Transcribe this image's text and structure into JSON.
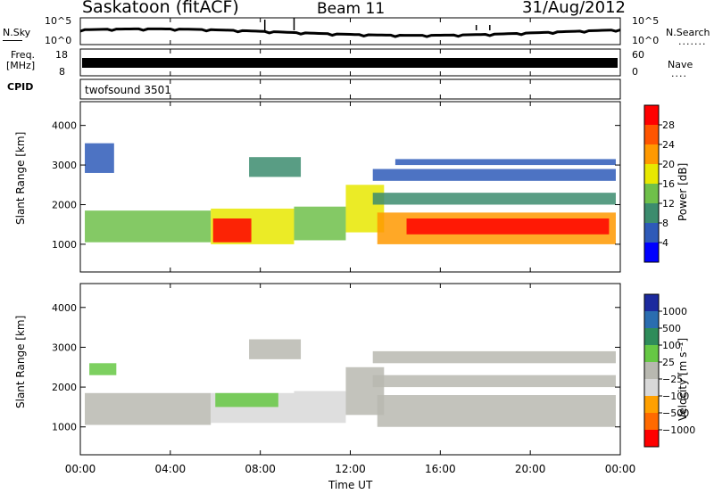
{
  "header": {
    "station": "Saskatoon (fitACF)",
    "beam": "Beam 11",
    "date": "31/Aug/2012"
  },
  "strips": {
    "nsky_label": "N.Sky",
    "nsearch_label": "N.Search",
    "nsky_ticks": [
      "10^5",
      "10^0"
    ],
    "nsearch_ticks": [
      "10^5",
      "10^0"
    ],
    "freq_label_1": "Freq.",
    "freq_label_2": "[MHz]",
    "freq_ticks": [
      "18",
      "8"
    ],
    "nave_label": "Nave",
    "nave_ticks": [
      "60",
      "0"
    ],
    "cpid_label": "CPID",
    "cpid_value": "twofsound 3501"
  },
  "colors": {
    "power_scale": [
      "#0000ff",
      "#2e5ab8",
      "#3c8c6e",
      "#6fc04a",
      "#e8e800",
      "#ff9900",
      "#ff5500",
      "#ff0000"
    ],
    "velocity_scale": [
      "#1c2a9e",
      "#2a6db0",
      "#2e8c5a",
      "#66c844",
      "#b8b8b0",
      "#d8d8d8",
      "#ffa000",
      "#ff6a00",
      "#ff0000"
    ]
  },
  "chart_data": [
    {
      "type": "heatmap",
      "panel": "power",
      "ylabel": "Slant Range [km]",
      "yticks": [
        "1000",
        "2000",
        "3000",
        "4000"
      ],
      "ylim": [
        300,
        4600
      ],
      "xlim": [
        0,
        24
      ],
      "colorbar": {
        "label": "Power [dB]",
        "ticks": [
          "4",
          "8",
          "12",
          "16",
          "20",
          "24",
          "28"
        ],
        "range": [
          0,
          32
        ]
      },
      "bands": [
        {
          "t0": 0.2,
          "t1": 5.8,
          "r0": 1050,
          "r1": 1850,
          "v": 12
        },
        {
          "t0": 5.8,
          "t1": 9.5,
          "r0": 1000,
          "r1": 1900,
          "v": 18
        },
        {
          "t0": 5.9,
          "t1": 7.6,
          "r0": 1050,
          "r1": 1650,
          "v": 28
        },
        {
          "t0": 9.5,
          "t1": 11.8,
          "r0": 1100,
          "r1": 1950,
          "v": 14
        },
        {
          "t0": 7.5,
          "t1": 9.8,
          "r0": 2700,
          "r1": 3200,
          "v": 10
        },
        {
          "t0": 11.8,
          "t1": 13.5,
          "r0": 1300,
          "r1": 2500,
          "v": 16
        },
        {
          "t0": 13.2,
          "t1": 23.8,
          "r0": 1000,
          "r1": 1800,
          "v": 22
        },
        {
          "t0": 14.5,
          "t1": 23.5,
          "r0": 1250,
          "r1": 1650,
          "v": 30
        },
        {
          "t0": 13.0,
          "t1": 23.8,
          "r0": 2000,
          "r1": 2300,
          "v": 8
        },
        {
          "t0": 13.0,
          "t1": 23.8,
          "r0": 2600,
          "r1": 2900,
          "v": 6
        },
        {
          "t0": 14.0,
          "t1": 23.8,
          "r0": 3000,
          "r1": 3150,
          "v": 5
        },
        {
          "t0": 0.2,
          "t1": 1.5,
          "r0": 2800,
          "r1": 3550,
          "v": 5
        }
      ]
    },
    {
      "type": "heatmap",
      "panel": "velocity",
      "ylabel": "Slant Range [km]",
      "yticks": [
        "1000",
        "2000",
        "3000",
        "4000"
      ],
      "ylim": [
        300,
        4600
      ],
      "xlim": [
        0,
        24
      ],
      "colorbar": {
        "label": "Velocity [m s⁻¹]",
        "ticks": [
          "1000",
          "500",
          "100",
          "25",
          "−25",
          "−100",
          "−500",
          "−1000"
        ],
        "range": [
          -1200,
          1200
        ]
      },
      "bands": [
        {
          "t0": 0.2,
          "t1": 5.8,
          "r0": 1050,
          "r1": 1850,
          "v": 0
        },
        {
          "t0": 5.8,
          "t1": 9.5,
          "r0": 1100,
          "r1": 1850,
          "v": -300
        },
        {
          "t0": 6.0,
          "t1": 8.8,
          "r0": 1500,
          "r1": 1850,
          "v": 200
        },
        {
          "t0": 9.5,
          "t1": 11.8,
          "r0": 1100,
          "r1": 1900,
          "v": -150
        },
        {
          "t0": 7.5,
          "t1": 9.8,
          "r0": 2700,
          "r1": 3200,
          "v": 0
        },
        {
          "t0": 11.8,
          "t1": 13.5,
          "r0": 1300,
          "r1": 2500,
          "v": 0
        },
        {
          "t0": 13.2,
          "t1": 23.8,
          "r0": 1000,
          "r1": 1800,
          "v": 0
        },
        {
          "t0": 13.0,
          "t1": 23.8,
          "r0": 2000,
          "r1": 2300,
          "v": 0
        },
        {
          "t0": 13.0,
          "t1": 23.8,
          "r0": 2600,
          "r1": 2900,
          "v": 0
        },
        {
          "t0": 0.4,
          "t1": 1.6,
          "r0": 2300,
          "r1": 2600,
          "v": 300
        }
      ]
    }
  ],
  "xaxis": {
    "label": "Time UT",
    "ticks": [
      "00:00",
      "04:00",
      "08:00",
      "12:00",
      "16:00",
      "20:00",
      "00:00"
    ]
  }
}
